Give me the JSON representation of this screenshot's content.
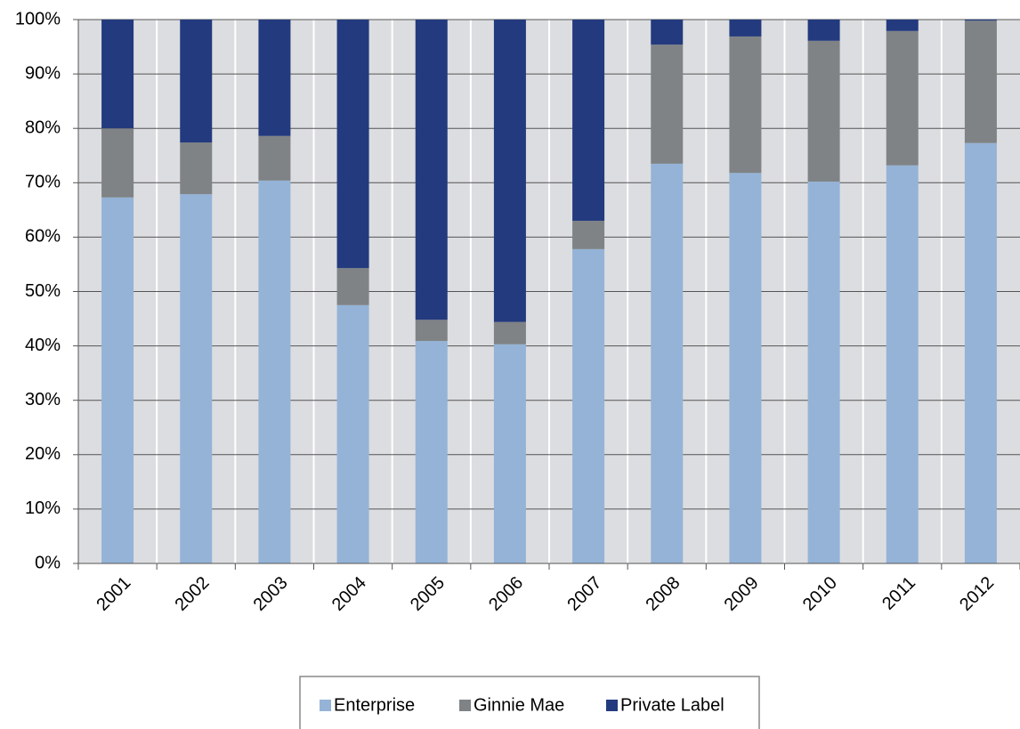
{
  "chart_data": {
    "type": "stacked-bar",
    "categories": [
      "2001",
      "2002",
      "2003",
      "2004",
      "2005",
      "2006",
      "2007",
      "2008",
      "2009",
      "2010",
      "2011",
      "2012"
    ],
    "series": [
      {
        "name": "Enterprise",
        "color": "#95b3d7",
        "values": [
          67.3,
          67.9,
          70.4,
          47.5,
          40.9,
          40.3,
          57.8,
          73.5,
          71.8,
          70.2,
          73.2,
          77.3
        ]
      },
      {
        "name": "Ginnie Mae",
        "color": "#7f8385",
        "values": [
          12.7,
          9.5,
          8.2,
          6.8,
          3.9,
          4.1,
          5.2,
          21.9,
          25.1,
          25.9,
          24.7,
          22.5
        ]
      },
      {
        "name": "Private Label",
        "color": "#233a7e",
        "values": [
          20.0,
          22.6,
          21.4,
          45.7,
          55.2,
          55.6,
          37.0,
          4.6,
          3.1,
          3.9,
          2.1,
          0.2
        ]
      }
    ],
    "ylim": [
      0,
      100
    ],
    "yticks": [
      {
        "value": 0,
        "label": "0%"
      },
      {
        "value": 10,
        "label": "10%"
      },
      {
        "value": 20,
        "label": "20%"
      },
      {
        "value": 30,
        "label": "30%"
      },
      {
        "value": 40,
        "label": "40%"
      },
      {
        "value": 50,
        "label": "50%"
      },
      {
        "value": 60,
        "label": "60%"
      },
      {
        "value": 70,
        "label": "70%"
      },
      {
        "value": 80,
        "label": "80%"
      },
      {
        "value": 90,
        "label": "90%"
      },
      {
        "value": 100,
        "label": "100%"
      }
    ],
    "grid": true,
    "legend": "bottom"
  }
}
